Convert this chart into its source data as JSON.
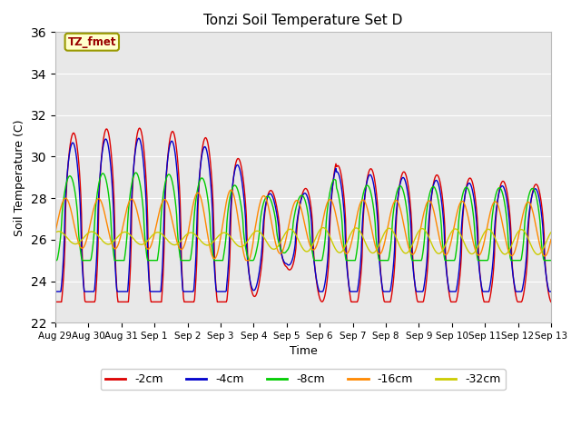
{
  "title": "Tonzi Soil Temperature Set D",
  "xlabel": "Time",
  "ylabel": "Soil Temperature (C)",
  "ylim": [
    22,
    36
  ],
  "yticks": [
    22,
    24,
    26,
    28,
    30,
    32,
    34,
    36
  ],
  "series_colors": {
    "-2cm": "#dd0000",
    "-4cm": "#0000cc",
    "-8cm": "#00cc00",
    "-16cm": "#ff8800",
    "-32cm": "#cccc00"
  },
  "legend_label": "TZ_fmet",
  "xtick_labels": [
    "Aug 29",
    "Aug 30",
    "Aug 31",
    "Sep 1",
    "Sep 2",
    "Sep 3",
    "Sep 4",
    "Sep 5",
    "Sep 6",
    "Sep 7",
    "Sep 8",
    "Sep 9",
    "Sep 10",
    "Sep 11",
    "Sep 12",
    "Sep 13"
  ],
  "figsize": [
    6.4,
    4.8
  ],
  "dpi": 100
}
